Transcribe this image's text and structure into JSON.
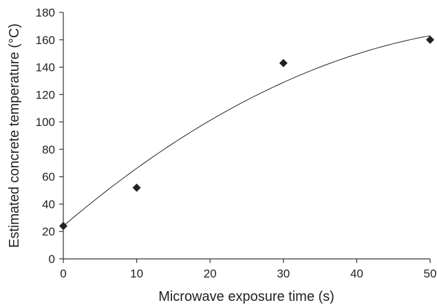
{
  "chart_data": {
    "type": "scatter",
    "title": "",
    "xlabel": "Microwave exposure time (s)",
    "ylabel": "Estimated concrete temperature (°C)",
    "xlim": [
      0,
      50
    ],
    "ylim": [
      0,
      180
    ],
    "x_ticks": [
      "0",
      "10",
      "20",
      "30",
      "40",
      "50"
    ],
    "y_ticks": [
      "0",
      "20",
      "40",
      "60",
      "80",
      "100",
      "120",
      "140",
      "160",
      "180"
    ],
    "grid": false,
    "legend": "none",
    "marker": "diamond",
    "marker_color": "#222222",
    "series": [
      {
        "x": [
          0,
          10,
          30,
          50
        ],
        "y": [
          24,
          52,
          143,
          160
        ]
      }
    ],
    "trendline": {
      "type": "polynomial-2",
      "x_range": [
        0,
        50
      ],
      "coefficients": [
        24,
        4.57,
        -0.0358
      ]
    }
  }
}
